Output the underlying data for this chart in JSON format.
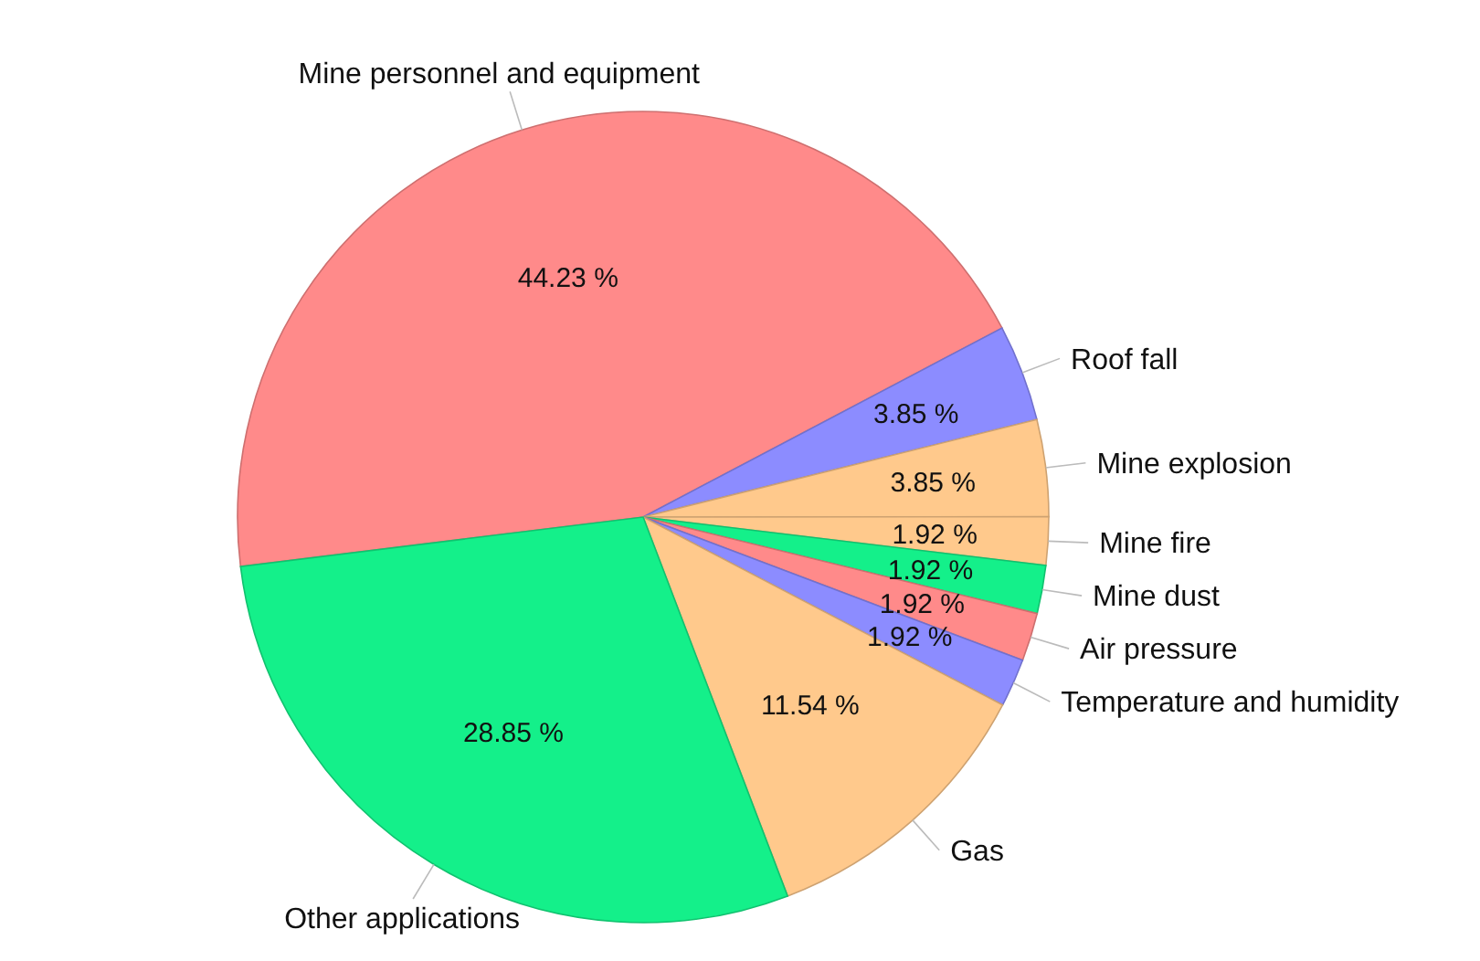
{
  "chart_data": {
    "type": "pie",
    "categories": [
      "Mine personnel and equipment",
      "Roof fall",
      "Mine explosion",
      "Mine fire",
      "Mine dust",
      "Air pressure",
      "Temperature and humidity",
      "Gas",
      "Other applications"
    ],
    "values": [
      44.23,
      3.85,
      3.85,
      1.92,
      1.92,
      1.92,
      1.92,
      11.54,
      28.85
    ],
    "colors": [
      "#ff8a8a",
      "#8c8cff",
      "#ffc98c",
      "#ffc98c",
      "#14f08a",
      "#ff8a8a",
      "#8c8cff",
      "#ffc98c",
      "#14f08a"
    ],
    "value_labels": [
      "44.23 %",
      "3.85 %",
      "3.85 %",
      "1.92 %",
      "1.92 %",
      "1.92 %",
      "1.92 %",
      "11.54 %",
      "28.85 %"
    ]
  }
}
